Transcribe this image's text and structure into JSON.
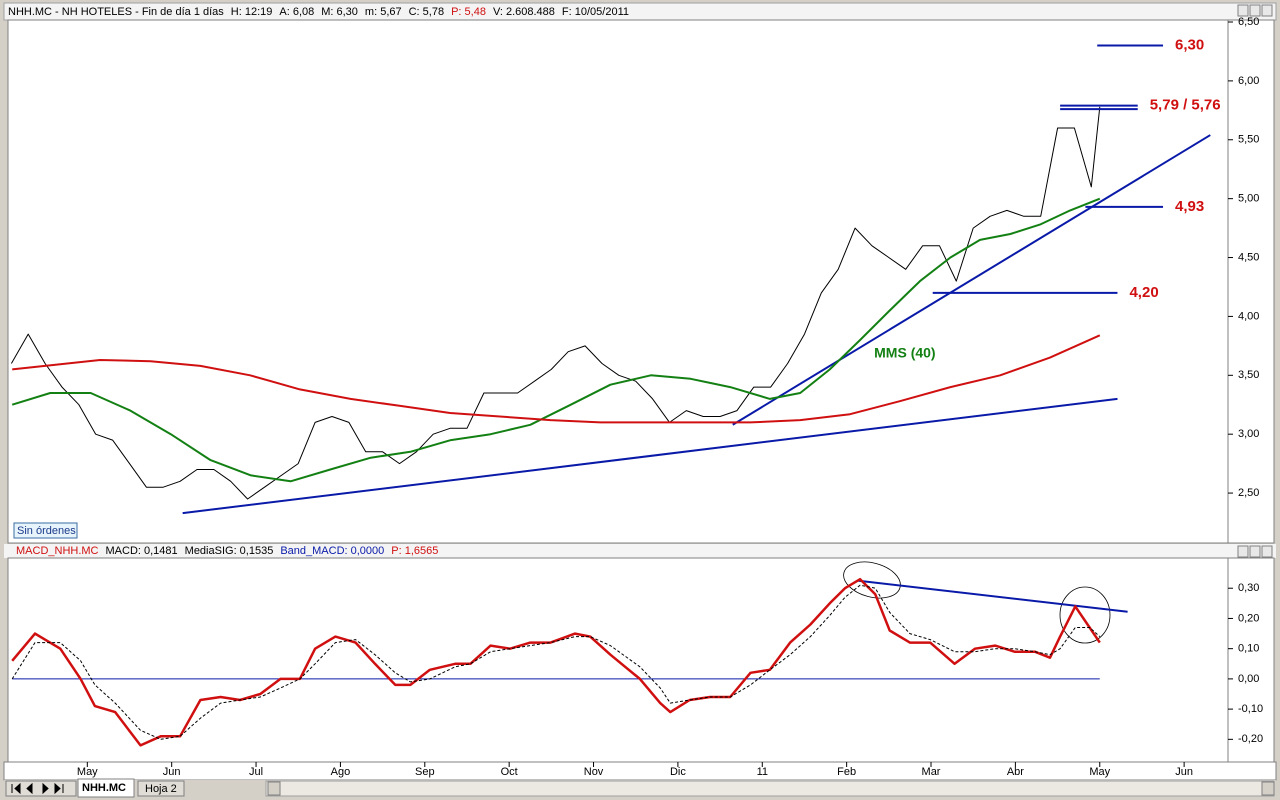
{
  "header": {
    "segments": [
      {
        "text": "NHH.MC - NH HOTELES - Fin de día 1 días",
        "color": "#000000"
      },
      {
        "text": "H: 12:19",
        "color": "#000000"
      },
      {
        "text": "A: 6,08",
        "color": "#000000"
      },
      {
        "text": "M: 6,30",
        "color": "#000000"
      },
      {
        "text": "m: 5,67",
        "color": "#000000"
      },
      {
        "text": "C: 5,78",
        "color": "#000000"
      },
      {
        "text": "P: 5,48",
        "color": "#d01010"
      },
      {
        "text": "V: 2.608.488",
        "color": "#000000"
      },
      {
        "text": "F: 10/05/2011",
        "color": "#000000"
      }
    ]
  },
  "chart_data": [
    {
      "type": "line",
      "xlim": [
        0.06,
        14.52
      ],
      "ylim": [
        2.076,
        6.517
      ],
      "yticks": [
        {
          "value": 2.5,
          "label": "2,50"
        },
        {
          "value": 3.0,
          "label": "3,00"
        },
        {
          "value": 3.5,
          "label": "3,50"
        },
        {
          "value": 4.0,
          "label": "4,00"
        },
        {
          "value": 4.5,
          "label": "4,50"
        },
        {
          "value": 5.0,
          "label": "5,00"
        },
        {
          "value": 5.5,
          "label": "5,50"
        },
        {
          "value": 6.0,
          "label": "6,00"
        },
        {
          "value": 6.5,
          "label": "6,50"
        }
      ],
      "series": [
        {
          "color": "#000000",
          "width": 1,
          "x": [
            0.1,
            0.3,
            0.5,
            0.7,
            0.9,
            1.1,
            1.3,
            1.5,
            1.7,
            1.9,
            2.1,
            2.3,
            2.5,
            2.7,
            2.9,
            3.1,
            3.3,
            3.5,
            3.7,
            3.9,
            4.1,
            4.3,
            4.5,
            4.7,
            4.9,
            5.1,
            5.3,
            5.5,
            5.7,
            5.9,
            6.1,
            6.3,
            6.5,
            6.7,
            6.9,
            7.1,
            7.3,
            7.5,
            7.7,
            7.9,
            8.1,
            8.3,
            8.5,
            8.7,
            8.9,
            9.1,
            9.3,
            9.5,
            9.7,
            9.9,
            10.1,
            10.3,
            10.5,
            10.7,
            10.9,
            11.1,
            11.3,
            11.5,
            11.7,
            11.9,
            12.1,
            12.3,
            12.5,
            12.7,
            12.9,
            13.0
          ],
          "values": [
            3.6,
            3.85,
            3.6,
            3.4,
            3.25,
            3.0,
            2.95,
            2.75,
            2.55,
            2.55,
            2.6,
            2.7,
            2.7,
            2.6,
            2.45,
            2.55,
            2.65,
            2.75,
            3.1,
            3.15,
            3.1,
            2.85,
            2.85,
            2.75,
            2.85,
            3.0,
            3.05,
            3.05,
            3.35,
            3.35,
            3.35,
            3.45,
            3.55,
            3.7,
            3.75,
            3.6,
            3.5,
            3.45,
            3.3,
            3.1,
            3.2,
            3.15,
            3.15,
            3.2,
            3.4,
            3.4,
            3.6,
            3.85,
            4.2,
            4.4,
            4.75,
            4.6,
            4.5,
            4.4,
            4.6,
            4.6,
            4.3,
            4.75,
            4.85,
            4.9,
            4.85,
            4.85,
            5.6,
            5.6,
            5.1,
            5.78
          ]
        },
        {
          "name": "MMS (40)",
          "color": "#138013",
          "width": 2,
          "x": [
            0.11,
            0.56,
            1.04,
            1.51,
            1.99,
            2.46,
            2.94,
            3.41,
            3.88,
            4.36,
            4.83,
            5.31,
            5.78,
            6.25,
            6.73,
            7.2,
            7.68,
            8.15,
            8.62,
            9.09,
            9.45,
            9.8,
            10.16,
            10.51,
            10.87,
            11.23,
            11.58,
            11.94,
            12.29,
            12.65,
            13.0
          ],
          "values": [
            3.25,
            3.35,
            3.35,
            3.2,
            3.0,
            2.78,
            2.65,
            2.6,
            2.7,
            2.8,
            2.85,
            2.95,
            3.0,
            3.08,
            3.25,
            3.42,
            3.5,
            3.47,
            3.4,
            3.3,
            3.35,
            3.55,
            3.8,
            4.05,
            4.3,
            4.5,
            4.65,
            4.7,
            4.78,
            4.9,
            5.0
          ]
        },
        {
          "color": "#d01010",
          "width": 2,
          "x": [
            0.11,
            1.15,
            1.75,
            2.34,
            2.93,
            3.52,
            4.12,
            4.71,
            5.3,
            5.89,
            6.49,
            7.08,
            7.67,
            8.26,
            8.86,
            9.45,
            10.04,
            10.63,
            11.23,
            11.82,
            12.41,
            13.0
          ],
          "values": [
            3.55,
            3.63,
            3.62,
            3.58,
            3.5,
            3.38,
            3.3,
            3.24,
            3.18,
            3.15,
            3.12,
            3.1,
            3.1,
            3.1,
            3.1,
            3.12,
            3.17,
            3.28,
            3.4,
            3.5,
            3.65,
            3.84
          ]
        }
      ],
      "trendlines": [
        {
          "color": "#0a1aa8",
          "x": [
            2.13,
            13.21
          ],
          "y": [
            2.33,
            3.3
          ]
        },
        {
          "color": "#0a1aa8",
          "x": [
            8.65,
            14.31
          ],
          "y": [
            3.08,
            5.54
          ]
        }
      ],
      "levels": [
        {
          "values": [
            6.3
          ],
          "label": "6,30",
          "x": [
            12.97,
            13.75
          ]
        },
        {
          "values": [
            5.79,
            5.76
          ],
          "label": "5,79 / 5,76",
          "x": [
            12.53,
            13.45
          ]
        },
        {
          "values": [
            4.93
          ],
          "label": "4,93",
          "x": [
            12.83,
            13.75
          ]
        },
        {
          "values": [
            4.2
          ],
          "label": "4,20",
          "x": [
            11.02,
            13.21
          ]
        }
      ],
      "level_color": "#0a1aa8",
      "level_label_color": "#d01010"
    },
    {
      "type": "line",
      "legend": [
        {
          "text": "MACD_NHH.MC",
          "color": "#d01010"
        },
        {
          "text": "MACD: 0,1481",
          "color": "#000000"
        },
        {
          "text": "MediaSIG: 0,1535",
          "color": "#000000"
        },
        {
          "text": "Band_MACD: 0,0000",
          "color": "#0a1aa8"
        },
        {
          "text": "P: 1,6565",
          "color": "#d01010"
        }
      ],
      "xlim": [
        0.06,
        14.52
      ],
      "xticks": [
        {
          "value": 1,
          "label": "May"
        },
        {
          "value": 2,
          "label": "Jun"
        },
        {
          "value": 3,
          "label": "Jul"
        },
        {
          "value": 4,
          "label": "Ago"
        },
        {
          "value": 5,
          "label": "Sep"
        },
        {
          "value": 6,
          "label": "Oct"
        },
        {
          "value": 7,
          "label": "Nov"
        },
        {
          "value": 8,
          "label": "Dic"
        },
        {
          "value": 9,
          "label": "11"
        },
        {
          "value": 10,
          "label": "Feb"
        },
        {
          "value": 11,
          "label": "Mar"
        },
        {
          "value": 12,
          "label": "Abr"
        },
        {
          "value": 13,
          "label": "May"
        },
        {
          "value": 14,
          "label": "Jun"
        }
      ],
      "ylim": [
        -0.275,
        0.4
      ],
      "yticks": [
        {
          "value": -0.2,
          "label": "-0,20"
        },
        {
          "value": -0.1,
          "label": "-0,10"
        },
        {
          "value": 0,
          "label": "0,00"
        },
        {
          "value": 0.1,
          "label": "0,10"
        },
        {
          "value": 0.2,
          "label": "0,20"
        },
        {
          "value": 0.3,
          "label": "0,30"
        }
      ],
      "band_value": 0,
      "band_color": "#0a1aa8",
      "series": [
        {
          "color": "#d01010",
          "width": 2.5,
          "x": [
            0.11,
            0.38,
            0.68,
            0.92,
            1.09,
            1.33,
            1.63,
            1.87,
            2.1,
            2.34,
            2.58,
            2.81,
            3.05,
            3.29,
            3.52,
            3.7,
            3.94,
            4.18,
            4.41,
            4.65,
            4.83,
            5.06,
            5.36,
            5.54,
            5.78,
            6.01,
            6.25,
            6.49,
            6.78,
            6.96,
            7.2,
            7.55,
            7.79,
            7.91,
            8.14,
            8.38,
            8.62,
            8.86,
            9.09,
            9.33,
            9.57,
            9.8,
            9.98,
            10.16,
            10.34,
            10.51,
            10.75,
            10.99,
            11.28,
            11.52,
            11.76,
            11.99,
            12.23,
            12.41,
            12.53,
            12.71,
            12.88,
            13.0
          ],
          "values": [
            0.06,
            0.15,
            0.1,
            0.0,
            -0.09,
            -0.11,
            -0.22,
            -0.19,
            -0.19,
            -0.07,
            -0.06,
            -0.07,
            -0.05,
            0.0,
            0.0,
            0.1,
            0.14,
            0.12,
            0.05,
            -0.02,
            -0.02,
            0.03,
            0.05,
            0.05,
            0.11,
            0.1,
            0.12,
            0.12,
            0.15,
            0.14,
            0.08,
            0.0,
            -0.08,
            -0.11,
            -0.07,
            -0.06,
            -0.06,
            0.02,
            0.03,
            0.12,
            0.18,
            0.25,
            0.3,
            0.33,
            0.28,
            0.16,
            0.12,
            0.12,
            0.05,
            0.1,
            0.11,
            0.09,
            0.09,
            0.07,
            0.14,
            0.24,
            0.17,
            0.12
          ]
        },
        {
          "color": "#000000",
          "width": 1,
          "dashed": true,
          "x": [
            0.11,
            0.38,
            0.68,
            0.92,
            1.09,
            1.33,
            1.63,
            1.87,
            2.1,
            2.34,
            2.58,
            2.81,
            3.05,
            3.29,
            3.52,
            3.7,
            3.94,
            4.18,
            4.41,
            4.65,
            4.83,
            5.06,
            5.36,
            5.54,
            5.78,
            6.01,
            6.25,
            6.49,
            6.78,
            6.96,
            7.2,
            7.55,
            7.79,
            7.91,
            8.14,
            8.38,
            8.62,
            8.86,
            9.09,
            9.33,
            9.57,
            9.8,
            9.98,
            10.16,
            10.34,
            10.51,
            10.75,
            10.99,
            11.28,
            11.52,
            11.76,
            11.99,
            12.23,
            12.41,
            12.53,
            12.71,
            12.88,
            13.0
          ],
          "values": [
            0.0,
            0.12,
            0.12,
            0.06,
            -0.02,
            -0.08,
            -0.17,
            -0.2,
            -0.19,
            -0.13,
            -0.08,
            -0.07,
            -0.06,
            -0.03,
            0.0,
            0.05,
            0.12,
            0.13,
            0.08,
            0.02,
            -0.01,
            0.0,
            0.04,
            0.05,
            0.09,
            0.1,
            0.11,
            0.12,
            0.14,
            0.14,
            0.11,
            0.04,
            -0.03,
            -0.08,
            -0.07,
            -0.06,
            -0.06,
            -0.02,
            0.03,
            0.08,
            0.14,
            0.21,
            0.27,
            0.31,
            0.3,
            0.22,
            0.15,
            0.13,
            0.09,
            0.09,
            0.1,
            0.1,
            0.09,
            0.08,
            0.1,
            0.17,
            0.17,
            0.14
          ]
        }
      ],
      "trendlines": [
        {
          "color": "#0a1aa8",
          "x": [
            10.13,
            13.33
          ],
          "y": [
            0.325,
            0.222
          ]
        }
      ]
    }
  ],
  "status": {
    "button": "Sin órdenes"
  },
  "tabs": [
    "NHH.MC",
    "Hoja 2"
  ]
}
